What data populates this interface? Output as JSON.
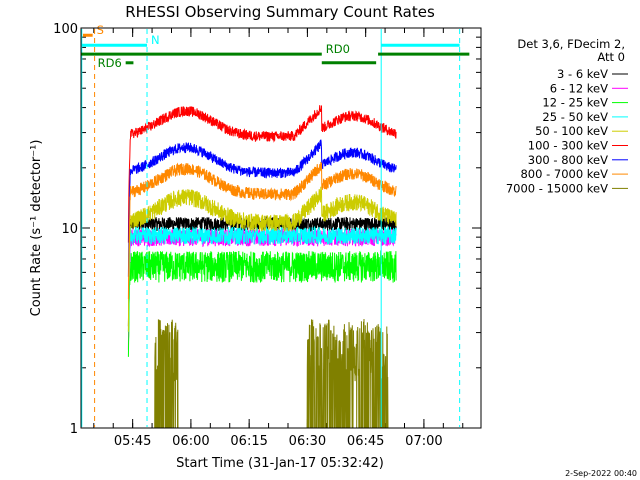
{
  "chart_data": {
    "type": "line",
    "title": "RHESSI Observing Summary Count Rates",
    "xlabel": "Start Time (31-Jan-17 05:32:42)",
    "ylabel": "Count Rate (s⁻¹ detector⁻¹)",
    "yscale": "log",
    "ylim": [
      1,
      100
    ],
    "xlim_minutes": [
      0,
      103
    ],
    "x_ticks": [
      {
        "t": 13.3,
        "label": "05:45"
      },
      {
        "t": 28.3,
        "label": "06:00"
      },
      {
        "t": 43.3,
        "label": "06:15"
      },
      {
        "t": 58.3,
        "label": "06:30"
      },
      {
        "t": 73.3,
        "label": "06:45"
      },
      {
        "t": 88.3,
        "label": "07:00"
      }
    ],
    "y_ticks": [
      {
        "v": 1,
        "label": "1"
      },
      {
        "v": 10,
        "label": "10"
      },
      {
        "v": 100,
        "label": "100"
      }
    ],
    "legend_header": [
      "Det 3,6, FDecim 2,",
      "Att 0"
    ],
    "series": [
      {
        "name": "3 - 6 keV",
        "color": "#000000",
        "base": 10.5,
        "noise": 0.08,
        "shape": "none"
      },
      {
        "name": "6 - 12 keV",
        "color": "#ff00ff",
        "base": 9.0,
        "noise": 0.1,
        "shape": "none"
      },
      {
        "name": "12 - 25 keV",
        "color": "#00ff00",
        "base": 6.5,
        "noise": 0.18,
        "shape": "none"
      },
      {
        "name": "25 - 50 keV",
        "color": "#00ffff",
        "base": 9.2,
        "noise": 0.1,
        "shape": "none"
      },
      {
        "name": "50 - 100 keV",
        "color": "#cccc00",
        "base": 13.0,
        "noise": 0.1,
        "shape": "hump"
      },
      {
        "name": "100 - 300 keV",
        "color": "#ff0000",
        "base": 35.0,
        "noise": 0.06,
        "shape": "hump"
      },
      {
        "name": "300 - 800 keV",
        "color": "#0000ff",
        "base": 23.0,
        "noise": 0.06,
        "shape": "hump"
      },
      {
        "name": "800 - 7000 keV",
        "color": "#ff8800",
        "base": 18.0,
        "noise": 0.07,
        "shape": "hump"
      },
      {
        "name": "7000 - 15000 keV",
        "color": "#808000",
        "base": 1.6,
        "noise": 0.3,
        "shape": "sparse"
      }
    ],
    "data_interval_minutes": [
      12.2,
      81.2
    ],
    "vertical_lines": [
      {
        "t": 3.5,
        "color": "#ff8800",
        "style": "dash"
      },
      {
        "t": 0.2,
        "color": "#00ffff",
        "style": "solid"
      },
      {
        "t": 17.0,
        "color": "#00ffff",
        "style": "dash"
      },
      {
        "t": 77.3,
        "color": "#00ffff",
        "style": "solid"
      },
      {
        "t": 97.5,
        "color": "#00ffff",
        "style": "dash"
      }
    ],
    "flag_bars": [
      {
        "label": "S",
        "color": "#ff8800",
        "y": 92,
        "t0": 0.5,
        "t1": 3.0
      },
      {
        "label": "N",
        "color": "#00ffff",
        "y": 82,
        "t0": 0.0,
        "t1": 17.0
      },
      {
        "label": "",
        "color": "#00ffff",
        "y": 82,
        "t0": 77.3,
        "t1": 97.5
      },
      {
        "label": "RD0",
        "color": "#008000",
        "y": 74,
        "t0": 0.0,
        "t1": 62.0
      },
      {
        "label": "",
        "color": "#008000",
        "y": 74,
        "t0": 76.5,
        "t1": 100.0
      },
      {
        "label": "",
        "color": "#008000",
        "y": 67,
        "t0": 62.0,
        "t1": 76.0
      },
      {
        "label": "RD6",
        "color": "#008000",
        "y": 67,
        "t0": 11.5,
        "t1": 13.5
      }
    ],
    "footer": "2-Sep-2022 00:40"
  }
}
